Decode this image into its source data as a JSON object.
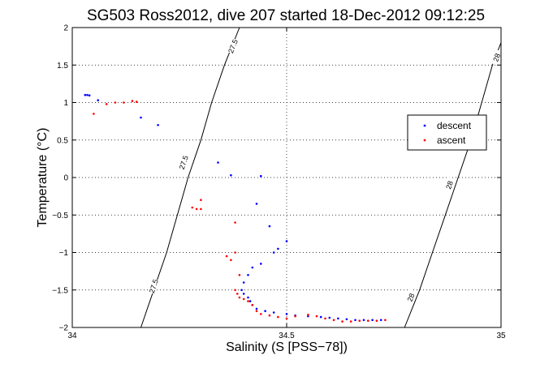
{
  "chart_data": {
    "type": "scatter",
    "title": "SG503 Ross2012, dive 207 started 18-Dec-2012 09:12:25",
    "xlabel": "Salinity (S [PSS−78])",
    "ylabel": "Temperature (°C)",
    "xlim": [
      34,
      35
    ],
    "ylim": [
      -2,
      2
    ],
    "x_ticks": [
      "34",
      "34.5",
      "35"
    ],
    "y_ticks": [
      "−2",
      "−1.5",
      "−1",
      "−0.5",
      "0",
      "0.5",
      "1",
      "1.5",
      "2"
    ],
    "grid": "dotted",
    "legend_placement": "right",
    "colors": {
      "descent": "#0000ff",
      "ascent": "#ff0000",
      "contour": "#000000"
    },
    "density_contours": [
      {
        "label": "27.5",
        "points": [
          [
            34.16,
            -2.0
          ],
          [
            34.19,
            -1.5
          ],
          [
            34.22,
            -1.0
          ],
          [
            34.245,
            -0.5
          ],
          [
            34.27,
            0.0
          ],
          [
            34.3,
            0.5
          ],
          [
            34.325,
            1.0
          ],
          [
            34.355,
            1.5
          ],
          [
            34.39,
            2.0
          ]
        ],
        "labels_at": [
          [
            34.19,
            -1.45
          ],
          [
            34.26,
            0.2
          ],
          [
            34.375,
            1.75
          ]
        ],
        "labels": [
          "27.5",
          "27.5",
          "27.5"
        ]
      },
      {
        "label": "28",
        "points": [
          [
            34.775,
            -2.0
          ],
          [
            34.81,
            -1.5
          ],
          [
            34.84,
            -1.0
          ],
          [
            34.87,
            -0.5
          ],
          [
            34.9,
            0.0
          ],
          [
            34.93,
            0.5
          ],
          [
            34.955,
            1.0
          ],
          [
            34.98,
            1.5
          ],
          [
            35.0,
            1.8
          ]
        ],
        "labels_at": [
          [
            34.79,
            -1.6
          ],
          [
            34.88,
            -0.1
          ],
          [
            34.99,
            1.6
          ]
        ],
        "labels": [
          "28",
          "28",
          "28"
        ]
      }
    ],
    "series": [
      {
        "name": "descent",
        "points": [
          [
            34.03,
            1.1
          ],
          [
            34.035,
            1.1
          ],
          [
            34.04,
            1.095
          ],
          [
            34.06,
            1.03
          ],
          [
            34.16,
            0.8
          ],
          [
            34.2,
            0.7
          ],
          [
            34.34,
            0.2
          ],
          [
            34.37,
            0.03
          ],
          [
            34.44,
            0.02
          ],
          [
            34.43,
            -0.35
          ],
          [
            34.46,
            -0.65
          ],
          [
            34.5,
            -0.85
          ],
          [
            34.48,
            -0.95
          ],
          [
            34.47,
            -1.0
          ],
          [
            34.44,
            -1.15
          ],
          [
            34.42,
            -1.2
          ],
          [
            34.41,
            -1.3
          ],
          [
            34.4,
            -1.4
          ],
          [
            34.395,
            -1.5
          ],
          [
            34.4,
            -1.55
          ],
          [
            34.41,
            -1.6
          ],
          [
            34.415,
            -1.65
          ],
          [
            34.42,
            -1.7
          ],
          [
            34.43,
            -1.75
          ],
          [
            34.45,
            -1.78
          ],
          [
            34.47,
            -1.8
          ],
          [
            34.5,
            -1.82
          ],
          [
            34.52,
            -1.84
          ],
          [
            34.55,
            -1.85
          ],
          [
            34.58,
            -1.86
          ],
          [
            34.6,
            -1.87
          ],
          [
            34.62,
            -1.88
          ],
          [
            34.64,
            -1.89
          ],
          [
            34.66,
            -1.9
          ],
          [
            34.68,
            -1.9
          ],
          [
            34.7,
            -1.9
          ],
          [
            34.72,
            -1.9
          ]
        ]
      },
      {
        "name": "ascent",
        "points": [
          [
            34.05,
            0.85
          ],
          [
            34.08,
            0.98
          ],
          [
            34.1,
            1.0
          ],
          [
            34.12,
            1.0
          ],
          [
            34.14,
            1.02
          ],
          [
            34.15,
            1.01
          ],
          [
            34.28,
            -0.4
          ],
          [
            34.29,
            -0.42
          ],
          [
            34.3,
            -0.42
          ],
          [
            34.3,
            -0.3
          ],
          [
            34.38,
            -0.6
          ],
          [
            34.36,
            -1.05
          ],
          [
            34.37,
            -1.1
          ],
          [
            34.38,
            -1.0
          ],
          [
            34.39,
            -1.3
          ],
          [
            34.38,
            -1.5
          ],
          [
            34.385,
            -1.55
          ],
          [
            34.39,
            -1.6
          ],
          [
            34.4,
            -1.62
          ],
          [
            34.41,
            -1.65
          ],
          [
            34.42,
            -1.7
          ],
          [
            34.43,
            -1.78
          ],
          [
            34.44,
            -1.82
          ],
          [
            34.46,
            -1.84
          ],
          [
            34.48,
            -1.86
          ],
          [
            34.5,
            -1.88
          ],
          [
            34.52,
            -1.85
          ],
          [
            34.55,
            -1.83
          ],
          [
            34.57,
            -1.85
          ],
          [
            34.59,
            -1.88
          ],
          [
            34.61,
            -1.9
          ],
          [
            34.63,
            -1.92
          ],
          [
            34.65,
            -1.92
          ],
          [
            34.67,
            -1.91
          ],
          [
            34.69,
            -1.91
          ],
          [
            34.71,
            -1.91
          ],
          [
            34.73,
            -1.9
          ]
        ]
      }
    ]
  }
}
